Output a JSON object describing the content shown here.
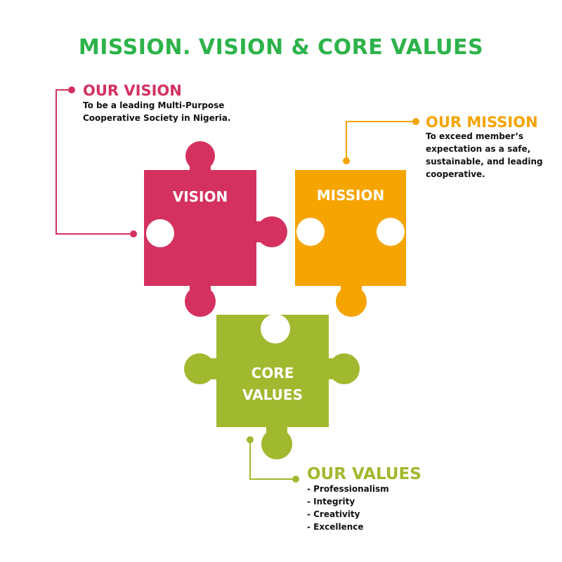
{
  "title": "MISSION. VISION & CORE VALUES",
  "colors": {
    "title": "#2db34a",
    "vision": "#d43160",
    "mission": "#f5a400",
    "values": "#a0b92e"
  },
  "pieces": {
    "vision": {
      "label": "VISION"
    },
    "mission": {
      "label": "MISSION"
    },
    "core_values": {
      "line1": "CORE",
      "line2": "VALUES"
    }
  },
  "vision": {
    "heading": "OUR VISION",
    "lines": [
      "To be a leading Multi-Purpose",
      "Cooperative Society in Nigeria."
    ]
  },
  "mission": {
    "heading": "OUR MISSION",
    "lines": [
      "To exceed member’s",
      "expectation as a safe,",
      "sustainable, and leading",
      "cooperative."
    ]
  },
  "values": {
    "heading": "OUR VALUES",
    "items": [
      "- Professionalism",
      "- Integrity",
      "- Creativity",
      "- Excellence"
    ]
  }
}
